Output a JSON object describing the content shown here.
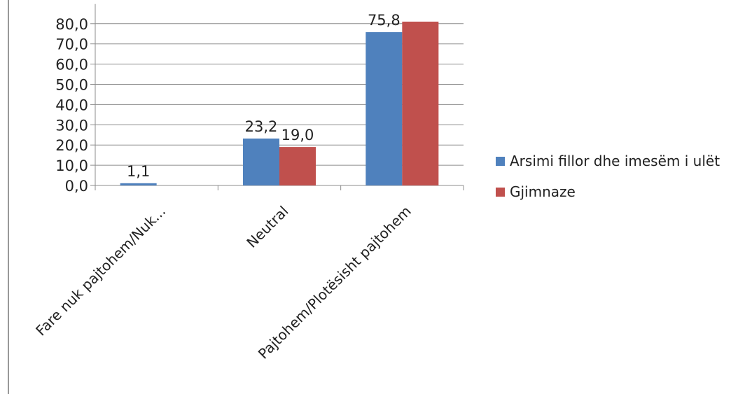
{
  "chart_data": {
    "type": "bar",
    "categories": [
      "Fare nuk pajtohem/Nuk...",
      "Neutral",
      "Pajtohem/Plotësisht pajtohem"
    ],
    "series": [
      {
        "name": "Arsimi fillor dhe imesëm i ulët",
        "color": "#4f81bd",
        "values": [
          1.1,
          23.2,
          75.8
        ],
        "labels": [
          "1,1",
          "23,2",
          "75,8"
        ]
      },
      {
        "name": "Gjimnaze",
        "color": "#c0504d",
        "values": [
          0,
          19.0,
          81.0
        ],
        "labels": [
          "",
          "19,0",
          ""
        ]
      }
    ],
    "ylim": [
      0,
      80
    ],
    "yticks": [
      "0,0",
      "10,0",
      "20,0",
      "30,0",
      "40,0",
      "50,0",
      "60,0",
      "70,0",
      "80,0"
    ],
    "grid": true,
    "legend": "right"
  }
}
